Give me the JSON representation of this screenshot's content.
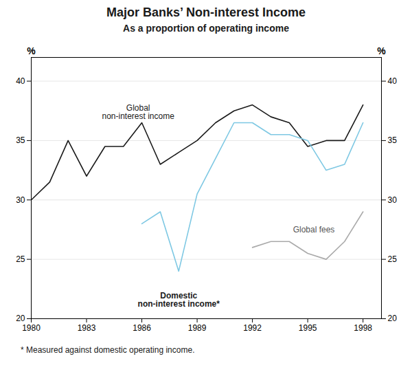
{
  "chart_data": {
    "type": "line",
    "title": "Major Banks’ Non-interest Income",
    "subtitle": "As a proportion of operating income",
    "footnote": "* Measured against domestic operating income.",
    "ylabel": "%",
    "y2label": "%",
    "x": [
      1980,
      1981,
      1982,
      1983,
      1984,
      1985,
      1986,
      1987,
      1988,
      1989,
      1990,
      1991,
      1992,
      1993,
      1994,
      1995,
      1996,
      1997,
      1998
    ],
    "series": [
      {
        "name": "Global non-interest income",
        "color": "#1a1a1a",
        "values": [
          30.0,
          31.5,
          35.0,
          32.0,
          34.5,
          34.5,
          36.5,
          33.0,
          34.0,
          35.0,
          36.5,
          37.5,
          38.0,
          37.0,
          36.5,
          34.5,
          35.0,
          35.0,
          38.0
        ]
      },
      {
        "name": "Domestic non-interest income*",
        "color": "#7ec8e3",
        "values": [
          null,
          null,
          null,
          null,
          null,
          null,
          28.0,
          29.0,
          24.0,
          30.5,
          33.5,
          36.5,
          36.5,
          35.5,
          35.5,
          35.0,
          32.5,
          33.0,
          36.5
        ]
      },
      {
        "name": "Global fees",
        "color": "#aaaaaa",
        "values": [
          null,
          null,
          null,
          null,
          null,
          null,
          null,
          null,
          null,
          null,
          null,
          null,
          26.0,
          26.5,
          26.5,
          25.5,
          25.0,
          26.5,
          29.0
        ]
      }
    ],
    "xlim": [
      1980,
      1999
    ],
    "xticks": [
      1980,
      1983,
      1986,
      1989,
      1992,
      1995,
      1998
    ],
    "ylim": [
      20,
      42
    ],
    "yticks": [
      20,
      25,
      30,
      35,
      40
    ],
    "y2lim": [
      20,
      42
    ],
    "y2ticks": [
      20,
      25,
      30,
      35,
      40
    ],
    "grid": true,
    "legend": false,
    "annotations": [
      {
        "text": "Global\nnon-interest income",
        "x": 1985.8,
        "y": 36.8
      },
      {
        "text": "Domestic\nnon-interest income*",
        "x": 1988.0,
        "y": 22.2
      },
      {
        "text": "Global fees",
        "x": 1994.2,
        "y": 27.5
      }
    ]
  }
}
